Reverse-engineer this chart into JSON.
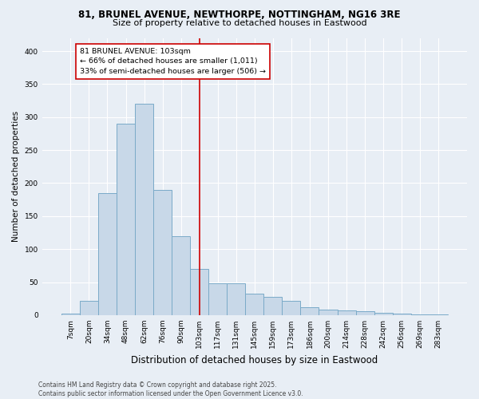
{
  "title_line1": "81, BRUNEL AVENUE, NEWTHORPE, NOTTINGHAM, NG16 3RE",
  "title_line2": "Size of property relative to detached houses in Eastwood",
  "xlabel": "Distribution of detached houses by size in Eastwood",
  "ylabel": "Number of detached properties",
  "footnote_line1": "Contains HM Land Registry data © Crown copyright and database right 2025.",
  "footnote_line2": "Contains public sector information licensed under the Open Government Licence v3.0.",
  "categories": [
    "7sqm",
    "20sqm",
    "34sqm",
    "48sqm",
    "62sqm",
    "76sqm",
    "90sqm",
    "103sqm",
    "117sqm",
    "131sqm",
    "145sqm",
    "159sqm",
    "173sqm",
    "186sqm",
    "200sqm",
    "214sqm",
    "228sqm",
    "242sqm",
    "256sqm",
    "269sqm",
    "283sqm"
  ],
  "values": [
    2,
    22,
    185,
    290,
    320,
    190,
    120,
    70,
    48,
    48,
    32,
    28,
    22,
    12,
    8,
    7,
    6,
    3,
    2,
    1,
    1
  ],
  "bar_color": "#c8d8e8",
  "bar_edge_color": "#7aaac8",
  "ylim": [
    0,
    420
  ],
  "yticks": [
    0,
    50,
    100,
    150,
    200,
    250,
    300,
    350,
    400
  ],
  "property_size_label": "103sqm",
  "annotation_title": "81 BRUNEL AVENUE: 103sqm",
  "annotation_line1": "← 66% of detached houses are smaller (1,011)",
  "annotation_line2": "33% of semi-detached houses are larger (506) →",
  "vline_color": "#cc0000",
  "annotation_box_color": "#ffffff",
  "annotation_box_edge": "#cc0000",
  "background_color": "#e8eef5",
  "plot_bg_color": "#e8eef5",
  "grid_color": "#ffffff",
  "title1_fontsize": 8.5,
  "title2_fontsize": 8.0,
  "ylabel_fontsize": 7.5,
  "xlabel_fontsize": 8.5,
  "tick_fontsize": 6.5,
  "footnote_fontsize": 5.5
}
